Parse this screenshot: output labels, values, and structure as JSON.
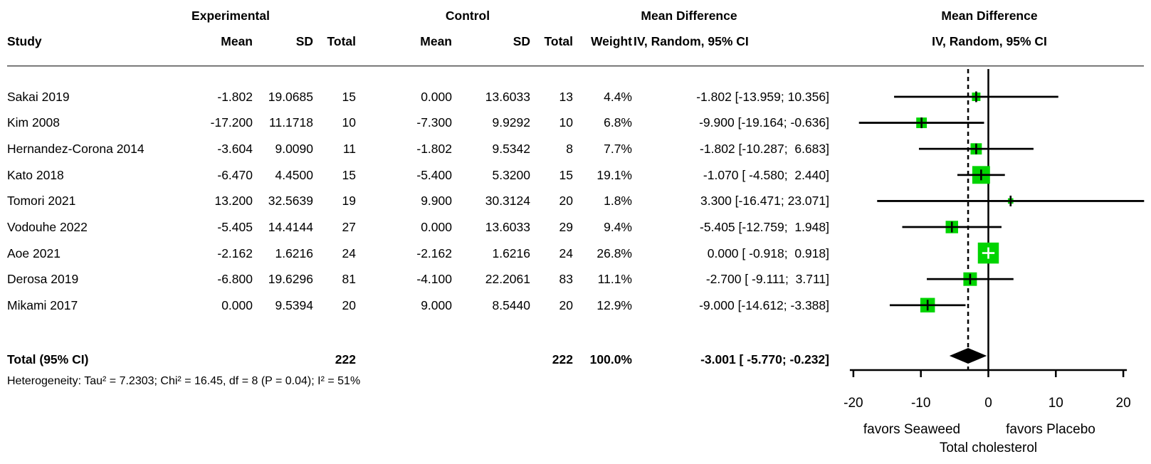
{
  "header": {
    "group_experimental": "Experimental",
    "group_control": "Control",
    "group_md_left": "Mean Difference",
    "group_md_right": "Mean Difference",
    "col_study": "Study",
    "col_mean_exp": "Mean",
    "col_sd_exp": "SD",
    "col_total_exp": "Total",
    "col_mean_ctrl": "Mean",
    "col_sd_ctrl": "SD",
    "col_total_ctrl": "Total",
    "col_weight": "Weight",
    "col_iv_left": "IV, Random, 95% CI",
    "col_iv_right": "IV, Random, 95% CI"
  },
  "chart_data": {
    "type": "forest",
    "effect_measure": "Mean Difference, IV, Random, 95% CI",
    "x_axis": {
      "ticks": [
        -20,
        -10,
        0,
        10,
        20
      ],
      "range": [
        -20,
        20
      ],
      "zero_line": 0,
      "pooled_dashed_line": -3.001
    },
    "studies": [
      {
        "name": "Sakai 2019",
        "exp_mean": "-1.802",
        "exp_sd": "19.0685",
        "exp_total": "15",
        "ctrl_mean": "0.000",
        "ctrl_sd": "13.6033",
        "ctrl_total": "13",
        "weight": "4.4%",
        "md_ci": "-1.802 [-13.959; 10.356]",
        "md": -1.802,
        "low": -13.959,
        "high": 10.356,
        "weight_num": 4.4
      },
      {
        "name": "Kim 2008",
        "exp_mean": "-17.200",
        "exp_sd": "11.1718",
        "exp_total": "10",
        "ctrl_mean": "-7.300",
        "ctrl_sd": "9.9292",
        "ctrl_total": "10",
        "weight": "6.8%",
        "md_ci": "-9.900 [-19.164; -0.636]",
        "md": -9.9,
        "low": -19.164,
        "high": -0.636,
        "weight_num": 6.8
      },
      {
        "name": "Hernandez-Corona 2014",
        "exp_mean": "-3.604",
        "exp_sd": "9.0090",
        "exp_total": "11",
        "ctrl_mean": "-1.802",
        "ctrl_sd": "9.5342",
        "ctrl_total": "8",
        "weight": "7.7%",
        "md_ci": "-1.802 [-10.287;  6.683]",
        "md": -1.802,
        "low": -10.287,
        "high": 6.683,
        "weight_num": 7.7
      },
      {
        "name": "Kato 2018",
        "exp_mean": "-6.470",
        "exp_sd": "4.4500",
        "exp_total": "15",
        "ctrl_mean": "-5.400",
        "ctrl_sd": "5.3200",
        "ctrl_total": "15",
        "weight": "19.1%",
        "md_ci": "-1.070 [ -4.580;  2.440]",
        "md": -1.07,
        "low": -4.58,
        "high": 2.44,
        "weight_num": 19.1
      },
      {
        "name": "Tomori 2021",
        "exp_mean": "13.200",
        "exp_sd": "32.5639",
        "exp_total": "19",
        "ctrl_mean": "9.900",
        "ctrl_sd": "30.3124",
        "ctrl_total": "20",
        "weight": "1.8%",
        "md_ci": "3.300 [-16.471; 23.071]",
        "md": 3.3,
        "low": -16.471,
        "high": 23.071,
        "weight_num": 1.8
      },
      {
        "name": "Vodouhe 2022",
        "exp_mean": "-5.405",
        "exp_sd": "14.4144",
        "exp_total": "27",
        "ctrl_mean": "0.000",
        "ctrl_sd": "13.6033",
        "ctrl_total": "29",
        "weight": "9.4%",
        "md_ci": "-5.405 [-12.759;  1.948]",
        "md": -5.405,
        "low": -12.759,
        "high": 1.948,
        "weight_num": 9.4
      },
      {
        "name": "Aoe 2021",
        "exp_mean": "-2.162",
        "exp_sd": "1.6216",
        "exp_total": "24",
        "ctrl_mean": "-2.162",
        "ctrl_sd": "1.6216",
        "ctrl_total": "24",
        "weight": "26.8%",
        "md_ci": "0.000 [ -0.918;  0.918]",
        "md": 0.0,
        "low": -0.918,
        "high": 0.918,
        "weight_num": 26.8
      },
      {
        "name": "Derosa 2019",
        "exp_mean": "-6.800",
        "exp_sd": "19.6296",
        "exp_total": "81",
        "ctrl_mean": "-4.100",
        "ctrl_sd": "22.2061",
        "ctrl_total": "83",
        "weight": "11.1%",
        "md_ci": "-2.700 [ -9.111;  3.711]",
        "md": -2.7,
        "low": -9.111,
        "high": 3.711,
        "weight_num": 11.1
      },
      {
        "name": "Mikami 2017",
        "exp_mean": "0.000",
        "exp_sd": "9.5394",
        "exp_total": "20",
        "ctrl_mean": "9.000",
        "ctrl_sd": "8.5440",
        "ctrl_total": "20",
        "weight": "12.9%",
        "md_ci": "-9.000 [-14.612; -3.388]",
        "md": -9.0,
        "low": -14.612,
        "high": -3.388,
        "weight_num": 12.9
      }
    ],
    "total": {
      "label": "Total (95% CI)",
      "exp_total": "222",
      "ctrl_total": "222",
      "weight": "100.0%",
      "md_ci": "-3.001 [ -5.770; -0.232]",
      "md": -3.001,
      "low": -5.77,
      "high": -0.232
    },
    "heterogeneity": "Heterogeneity: Tau² = 7.2303; Chi² = 16.45, df = 8 (P = 0.04); I² = 51%",
    "footer": {
      "favors_left": "favors Seaweed",
      "favors_right": "favors Placebo",
      "caption": "Total cholesterol"
    },
    "colors": {
      "square": "#00d400",
      "line": "#000000",
      "diamond": "#000000"
    }
  }
}
